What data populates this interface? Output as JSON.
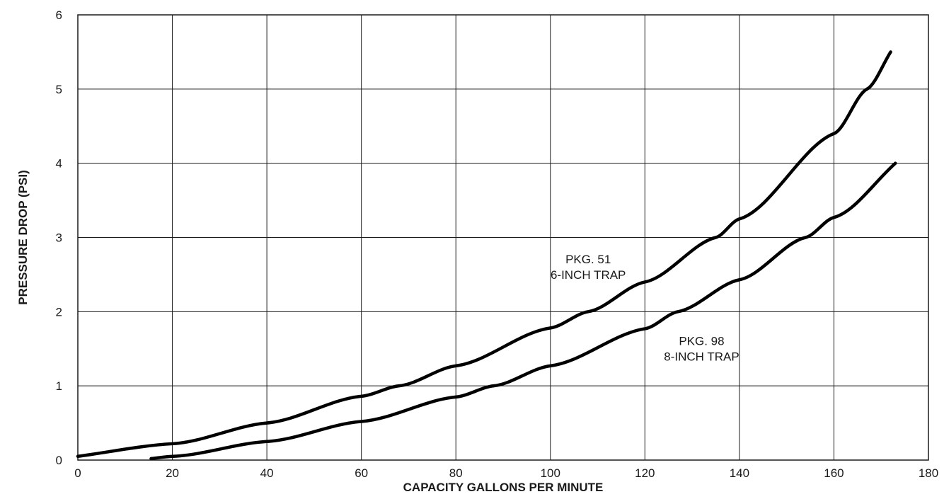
{
  "chart_data": {
    "type": "line",
    "title": "",
    "xlabel": "CAPACITY GALLONS PER MINUTE",
    "ylabel": "PRESSURE DROP (PSI)",
    "xlim": [
      0,
      180
    ],
    "ylim": [
      0,
      6
    ],
    "xticks": [
      "0",
      "20",
      "40",
      "60",
      "80",
      "100",
      "120",
      "140",
      "160",
      "180"
    ],
    "yticks": [
      "0",
      "1",
      "2",
      "3",
      "4",
      "5",
      "6"
    ],
    "grid": true,
    "series": [
      {
        "name": "PKG. 51 6-INCH TRAP",
        "x": [
          0,
          20,
          40,
          60,
          68,
          80,
          100,
          108,
          120,
          135,
          140,
          160,
          167,
          172
        ],
        "y": [
          0.05,
          0.22,
          0.5,
          0.86,
          1.0,
          1.27,
          1.78,
          2.0,
          2.4,
          3.0,
          3.25,
          4.4,
          5.0,
          5.5
        ]
      },
      {
        "name": "PKG. 98 8-INCH TRAP",
        "x": [
          15.5,
          20,
          40,
          60,
          80,
          88,
          100,
          120,
          127,
          140,
          154,
          160,
          173
        ],
        "y": [
          0.02,
          0.05,
          0.25,
          0.52,
          0.85,
          1.0,
          1.27,
          1.77,
          2.0,
          2.43,
          3.0,
          3.27,
          4.0
        ]
      }
    ],
    "annotations": [
      {
        "lines": [
          "PKG. 51",
          "6-INCH TRAP"
        ],
        "x": 108,
        "y": 2.65
      },
      {
        "lines": [
          "PKG. 98",
          "8-INCH TRAP"
        ],
        "x": 132,
        "y": 1.55
      }
    ]
  }
}
